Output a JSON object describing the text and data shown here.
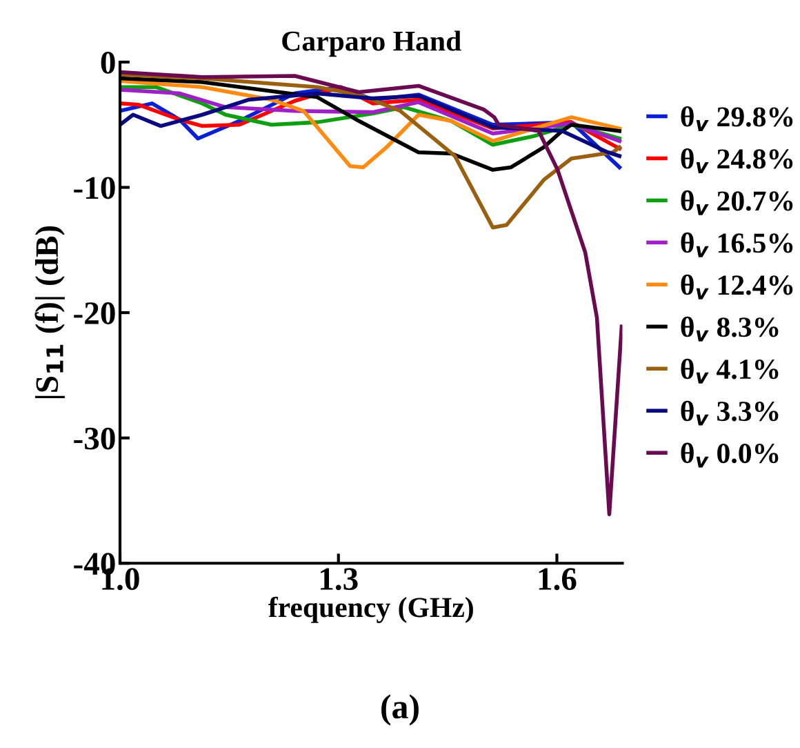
{
  "chart_data": {
    "type": "line",
    "title": "Carparo Hand",
    "xlabel": "frequency (GHz)",
    "ylabel": "|S$_{11}$ (f)| (dB)",
    "annotations": [
      "(a)"
    ],
    "xlim": [
      1.0,
      1.69
    ],
    "xticks": [
      {
        "value": 1.0,
        "label": "1.0"
      },
      {
        "value": 1.3,
        "label": "1.3"
      },
      {
        "value": 1.6,
        "label": "1.6"
      }
    ],
    "ylim": [
      -40,
      0
    ],
    "yticks": [
      -40,
      -30,
      -20,
      -10,
      0
    ],
    "grid": false,
    "legend": "right",
    "line_style": "solid",
    "marker": "none",
    "series": [
      {
        "name": "θ$_{v}$ 29.8%",
        "color": "#0a1fd6",
        "x": [
          1.0,
          1.044,
          1.082,
          1.107,
          1.164,
          1.24,
          1.303,
          1.347,
          1.41,
          1.512,
          1.62,
          1.686
        ],
        "values": [
          -3.9,
          -3.3,
          -4.6,
          -6.1,
          -4.7,
          -2.5,
          -2.0,
          -3.0,
          -2.6,
          -5.0,
          -4.8,
          -8.4
        ]
      },
      {
        "name": "θ$_{v}$ 24.8%",
        "color": "#ff0000",
        "x": [
          1.0,
          1.025,
          1.082,
          1.113,
          1.164,
          1.24,
          1.303,
          1.347,
          1.41,
          1.512,
          1.62,
          1.686
        ],
        "values": [
          -3.3,
          -3.4,
          -4.6,
          -5.1,
          -5.0,
          -3.1,
          -2.0,
          -3.3,
          -3.0,
          -5.3,
          -4.8,
          -6.9
        ]
      },
      {
        "name": "θ$_{v}$ 20.7%",
        "color": "#0fa012",
        "x": [
          1.0,
          1.05,
          1.113,
          1.145,
          1.208,
          1.271,
          1.347,
          1.39,
          1.455,
          1.512,
          1.569,
          1.62,
          1.686
        ],
        "values": [
          -2.0,
          -2.0,
          -3.3,
          -4.2,
          -5.0,
          -4.8,
          -4.1,
          -3.6,
          -4.7,
          -6.6,
          -5.9,
          -5.0,
          -6.1
        ]
      },
      {
        "name": "θ$_{v}$ 16.5%",
        "color": "#a020c8",
        "x": [
          1.0,
          1.082,
          1.145,
          1.24,
          1.347,
          1.41,
          1.512,
          1.62,
          1.686
        ],
        "values": [
          -2.2,
          -2.5,
          -3.6,
          -3.9,
          -4.0,
          -3.2,
          -5.7,
          -4.9,
          -6.3
        ]
      },
      {
        "name": "θ$_{v}$ 12.4%",
        "color": "#ff8c10",
        "x": [
          1.0,
          1.113,
          1.208,
          1.252,
          1.316,
          1.334,
          1.366,
          1.41,
          1.455,
          1.512,
          1.62,
          1.686
        ],
        "values": [
          -1.5,
          -2.0,
          -3.0,
          -3.9,
          -8.3,
          -8.4,
          -6.8,
          -4.2,
          -4.7,
          -6.3,
          -4.4,
          -5.3
        ]
      },
      {
        "name": "θ$_{v}$ 8.3%",
        "color": "#000000",
        "x": [
          1.0,
          1.113,
          1.271,
          1.328,
          1.41,
          1.455,
          1.512,
          1.537,
          1.582,
          1.607,
          1.62,
          1.686
        ],
        "values": [
          -1.3,
          -1.6,
          -2.8,
          -4.7,
          -7.2,
          -7.3,
          -8.6,
          -8.4,
          -6.8,
          -5.5,
          -5.0,
          -5.5
        ]
      },
      {
        "name": "θ$_{v}$ 4.1%",
        "color": "#9a6010",
        "x": [
          1.0,
          1.113,
          1.271,
          1.328,
          1.385,
          1.46,
          1.512,
          1.531,
          1.582,
          1.62,
          1.677,
          1.686
        ],
        "values": [
          -1.0,
          -1.3,
          -2.0,
          -2.6,
          -3.9,
          -7.5,
          -13.2,
          -13.0,
          -9.4,
          -7.7,
          -7.2,
          -6.8
        ]
      },
      {
        "name": "θ$_{v}$ 3.3%",
        "color": "#0a0a80",
        "x": [
          1.0,
          1.018,
          1.056,
          1.113,
          1.177,
          1.271,
          1.347,
          1.41,
          1.512,
          1.607,
          1.67,
          1.686
        ],
        "values": [
          -5.0,
          -4.2,
          -5.1,
          -4.2,
          -3.0,
          -2.5,
          -2.9,
          -2.7,
          -5.2,
          -5.5,
          -7.2,
          -7.5
        ]
      },
      {
        "name": "θ$_{v}$ 0.0%",
        "color": "#6a0a50",
        "x": [
          1.0,
          1.113,
          1.24,
          1.328,
          1.41,
          1.5,
          1.514,
          1.52,
          1.575,
          1.601,
          1.639,
          1.655,
          1.672,
          1.689
        ],
        "values": [
          -0.8,
          -1.2,
          -1.1,
          -2.4,
          -1.9,
          -3.8,
          -4.4,
          -5.0,
          -5.5,
          -8.6,
          -15.2,
          -20.4,
          -36.1,
          -21.1
        ]
      }
    ]
  }
}
